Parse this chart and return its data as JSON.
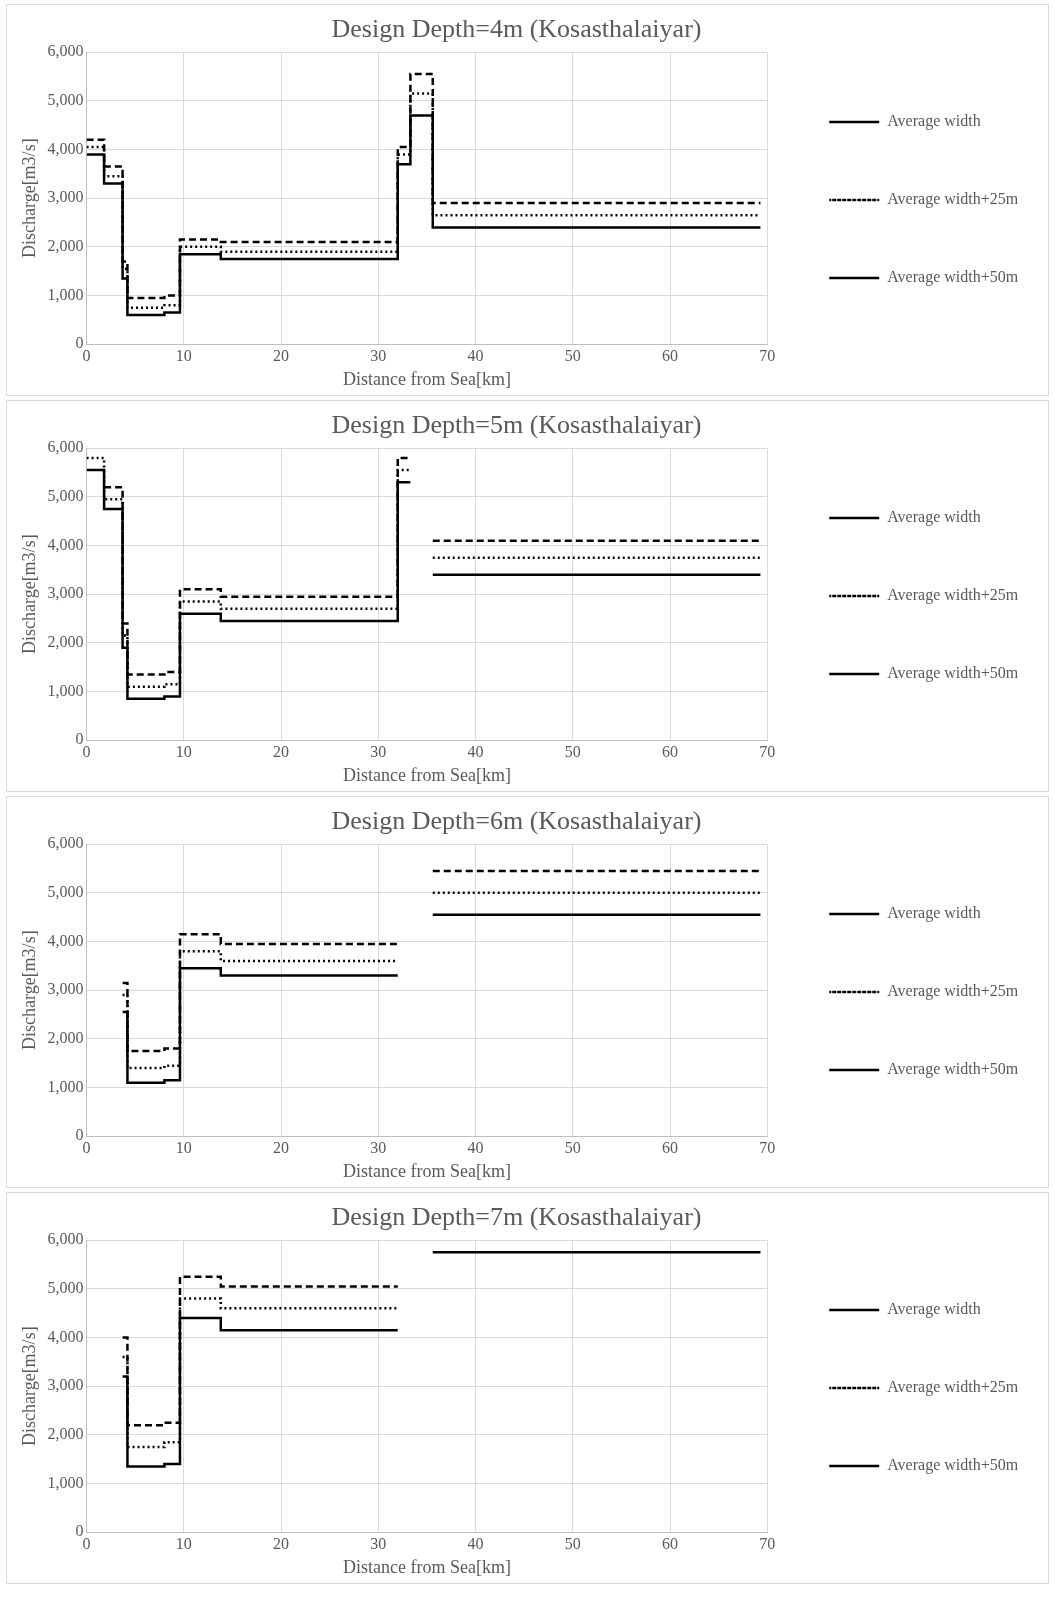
{
  "chart_data": [
    {
      "type": "step",
      "title": "Design Depth=4m (Kosasthalaiyar)",
      "xlabel": "Distance from Sea[km]",
      "ylabel": "Discharge[m3/s]",
      "xlim": [
        0,
        70
      ],
      "xticks": [
        0,
        10,
        20,
        30,
        40,
        50,
        60,
        70
      ],
      "ylim": [
        0,
        6000
      ],
      "yticks": [
        {
          "value": 0,
          "label": "0"
        },
        {
          "value": 1000,
          "label": "1,000"
        },
        {
          "value": 2000,
          "label": "2,000"
        },
        {
          "value": 3000,
          "label": "3,000"
        },
        {
          "value": 4000,
          "label": "4,000"
        },
        {
          "value": 5000,
          "label": "5,000"
        },
        {
          "value": 6000,
          "label": "6,000"
        }
      ],
      "grid": true,
      "legend": "right",
      "series": [
        {
          "name": "Average width",
          "color": "#000000",
          "line_style": "solid",
          "x": [
            0,
            1.8,
            3.7,
            4.2,
            8.0,
            9.6,
            13.8,
            32.0,
            33.3,
            35.6,
            69.3
          ],
          "values": [
            3900,
            3300,
            1350,
            600,
            650,
            1850,
            1750,
            3700,
            4700,
            2400,
            2400
          ]
        },
        {
          "name": "Average width+25m",
          "color": "#000000",
          "line_style": "dotted",
          "x": [
            0,
            1.8,
            3.7,
            4.2,
            8.0,
            9.6,
            13.8,
            32.0,
            33.3,
            35.6,
            69.3
          ],
          "values": [
            4050,
            3450,
            1550,
            750,
            800,
            2000,
            1900,
            3900,
            5150,
            2650,
            2650
          ]
        },
        {
          "name": "Average width+50m",
          "color": "#000000",
          "line_style": "dashed",
          "x": [
            0,
            1.8,
            3.7,
            4.2,
            8.0,
            9.6,
            13.8,
            32.0,
            33.3,
            35.6,
            69.3
          ],
          "values": [
            4200,
            3650,
            1700,
            950,
            1000,
            2150,
            2100,
            4050,
            5550,
            2900,
            2900
          ]
        }
      ]
    },
    {
      "type": "step",
      "title": "Design Depth=5m (Kosasthalaiyar)",
      "xlabel": "Distance from Sea[km]",
      "ylabel": "Discharge[m3/s]",
      "xlim": [
        0,
        70
      ],
      "xticks": [
        0,
        10,
        20,
        30,
        40,
        50,
        60,
        70
      ],
      "ylim": [
        0,
        6000
      ],
      "yticks": [
        {
          "value": 0,
          "label": "0"
        },
        {
          "value": 1000,
          "label": "1,000"
        },
        {
          "value": 2000,
          "label": "2,000"
        },
        {
          "value": 3000,
          "label": "3,000"
        },
        {
          "value": 4000,
          "label": "4,000"
        },
        {
          "value": 5000,
          "label": "5,000"
        },
        {
          "value": 6000,
          "label": "6,000"
        }
      ],
      "grid": true,
      "legend": "right",
      "series": [
        {
          "name": "Average width",
          "color": "#000000",
          "line_style": "solid",
          "x": [
            0,
            1.8,
            3.7,
            4.2,
            8.0,
            9.6,
            13.8,
            32.0,
            33.3,
            35.6,
            69.3
          ],
          "values": [
            5550,
            4750,
            1900,
            850,
            900,
            2600,
            2450,
            5300,
            null,
            3400,
            3400
          ]
        },
        {
          "name": "Average width+25m",
          "color": "#000000",
          "line_style": "dotted",
          "x": [
            0,
            1.8,
            3.7,
            4.2,
            8.0,
            9.6,
            13.8,
            32.0,
            33.3,
            35.6,
            69.3
          ],
          "values": [
            5800,
            4950,
            2150,
            1100,
            1150,
            2850,
            2700,
            5550,
            null,
            3750,
            3750
          ]
        },
        {
          "name": "Average width+50m",
          "color": "#000000",
          "line_style": "dashed",
          "x": [
            1.8,
            3.7,
            4.2,
            8.0,
            9.6,
            13.8,
            32.0,
            33.3,
            35.6,
            69.3
          ],
          "values": [
            5200,
            2400,
            1350,
            1400,
            3100,
            2950,
            5800,
            null,
            4100,
            4100
          ]
        }
      ]
    },
    {
      "type": "step",
      "title": "Design Depth=6m (Kosasthalaiyar)",
      "xlabel": "Distance from Sea[km]",
      "ylabel": "Discharge[m3/s]",
      "xlim": [
        0,
        70
      ],
      "xticks": [
        0,
        10,
        20,
        30,
        40,
        50,
        60,
        70
      ],
      "ylim": [
        0,
        6000
      ],
      "yticks": [
        {
          "value": 0,
          "label": "0"
        },
        {
          "value": 1000,
          "label": "1,000"
        },
        {
          "value": 2000,
          "label": "2,000"
        },
        {
          "value": 3000,
          "label": "3,000"
        },
        {
          "value": 4000,
          "label": "4,000"
        },
        {
          "value": 5000,
          "label": "5,000"
        },
        {
          "value": 6000,
          "label": "6,000"
        }
      ],
      "grid": true,
      "legend": "right",
      "series": [
        {
          "name": "Average width",
          "color": "#000000",
          "line_style": "solid",
          "x": [
            3.7,
            4.2,
            8.0,
            9.6,
            13.8,
            32.0,
            35.6,
            69.3
          ],
          "values": [
            2550,
            1100,
            1150,
            3450,
            3300,
            null,
            4550,
            4550
          ]
        },
        {
          "name": "Average width+25m",
          "color": "#000000",
          "line_style": "dotted",
          "x": [
            3.7,
            4.2,
            8.0,
            9.6,
            13.8,
            32.0,
            35.6,
            69.3
          ],
          "values": [
            2900,
            1400,
            1450,
            3800,
            3600,
            null,
            5000,
            5000
          ]
        },
        {
          "name": "Average width+50m",
          "color": "#000000",
          "line_style": "dashed",
          "x": [
            3.7,
            4.2,
            8.0,
            9.6,
            13.8,
            32.0,
            35.6,
            69.3
          ],
          "values": [
            3150,
            1750,
            1800,
            4150,
            3950,
            null,
            5450,
            5450
          ]
        }
      ]
    },
    {
      "type": "step",
      "title": "Design Depth=7m (Kosasthalaiyar)",
      "xlabel": "Distance from Sea[km]",
      "ylabel": "Discharge[m3/s]",
      "xlim": [
        0,
        70
      ],
      "xticks": [
        0,
        10,
        20,
        30,
        40,
        50,
        60,
        70
      ],
      "ylim": [
        0,
        6000
      ],
      "yticks": [
        {
          "value": 0,
          "label": "0"
        },
        {
          "value": 1000,
          "label": "1,000"
        },
        {
          "value": 2000,
          "label": "2,000"
        },
        {
          "value": 3000,
          "label": "3,000"
        },
        {
          "value": 4000,
          "label": "4,000"
        },
        {
          "value": 5000,
          "label": "5,000"
        },
        {
          "value": 6000,
          "label": "6,000"
        }
      ],
      "grid": true,
      "legend": "right",
      "series": [
        {
          "name": "Average width",
          "color": "#000000",
          "line_style": "solid",
          "x": [
            3.7,
            4.2,
            8.0,
            9.6,
            13.8,
            32.0,
            35.6,
            69.3
          ],
          "values": [
            3200,
            1350,
            1400,
            4400,
            4150,
            null,
            5750,
            5750
          ]
        },
        {
          "name": "Average width+25m",
          "color": "#000000",
          "line_style": "dotted",
          "x": [
            3.7,
            4.2,
            8.0,
            9.6,
            13.8,
            32.0
          ],
          "values": [
            3600,
            1750,
            1850,
            4800,
            4600,
            4600
          ]
        },
        {
          "name": "Average width+50m",
          "color": "#000000",
          "line_style": "dashed",
          "x": [
            3.7,
            4.2,
            8.0,
            9.6,
            13.8,
            32.0
          ],
          "values": [
            4000,
            2200,
            2250,
            5250,
            5050,
            5050
          ]
        }
      ]
    }
  ]
}
